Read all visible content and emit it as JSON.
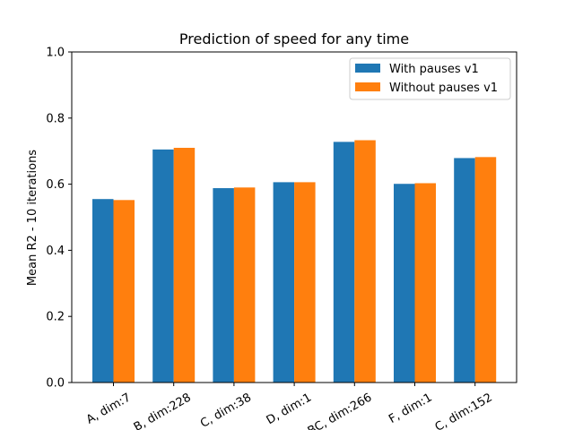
{
  "chart_data": {
    "type": "bar",
    "title": "Prediction of speed for any time",
    "xlabel": "",
    "ylabel": "Mean R2 - 10 iterations",
    "ylim": [
      0,
      1.0
    ],
    "yticks": [
      "0.0",
      "0.2",
      "0.4",
      "0.6",
      "0.8",
      "1.0"
    ],
    "categories": [
      "A, dim:7",
      "B, dim:228",
      "C, dim:38",
      "D, dim:1",
      "BC, dim:266",
      "F, dim:1",
      "C, dim:152"
    ],
    "series": [
      {
        "name": "With pauses v1",
        "color": "#1f77b4",
        "values": [
          0.555,
          0.705,
          0.588,
          0.606,
          0.728,
          0.601,
          0.679
        ]
      },
      {
        "name": "Without pauses v1",
        "color": "#ff7f0e",
        "values": [
          0.552,
          0.71,
          0.59,
          0.606,
          0.733,
          0.603,
          0.682
        ]
      }
    ],
    "legend_position": "top-right",
    "grid": false
  }
}
